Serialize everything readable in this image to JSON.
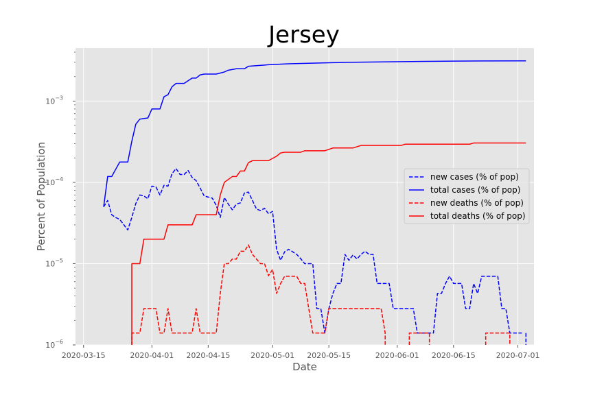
{
  "chart_data": {
    "type": "line",
    "title": "Jersey",
    "xlabel": "Date",
    "ylabel": "Percent of Population",
    "yscale": "log",
    "ylim": [
      1e-06,
      0.0045
    ],
    "xlim": [
      "2020-03-13",
      "2020-07-05"
    ],
    "grid": true,
    "legend_position": "center-right",
    "x_ticks": [
      "2020-03-15",
      "2020-04-01",
      "2020-04-15",
      "2020-05-01",
      "2020-05-15",
      "2020-06-01",
      "2020-06-15",
      "2020-07-01"
    ],
    "y_ticks": [
      {
        "value": 1e-06,
        "base": "10",
        "exp": "−6"
      },
      {
        "value": 1e-05,
        "base": "10",
        "exp": "−5"
      },
      {
        "value": 0.0001,
        "base": "10",
        "exp": "−4"
      },
      {
        "value": 0.001,
        "base": "10",
        "exp": "−3"
      }
    ],
    "series": [
      {
        "name": "new cases (% of pop)",
        "color": "#0000ff",
        "style": "dashed",
        "points": [
          [
            "2020-03-20",
            5e-05
          ],
          [
            "2020-03-21",
            6e-05
          ],
          [
            "2020-03-22",
            4e-05
          ],
          [
            "2020-03-23",
            3.7e-05
          ],
          [
            "2020-03-24",
            3.5e-05
          ],
          [
            "2020-03-26",
            2.6e-05
          ],
          [
            "2020-03-27",
            3.7e-05
          ],
          [
            "2020-03-28",
            5.5e-05
          ],
          [
            "2020-03-29",
            7e-05
          ],
          [
            "2020-03-30",
            6.8e-05
          ],
          [
            "2020-03-31",
            6.3e-05
          ],
          [
            "2020-04-01",
            9e-05
          ],
          [
            "2020-04-02",
            8.8e-05
          ],
          [
            "2020-04-03",
            7e-05
          ],
          [
            "2020-04-04",
            9.2e-05
          ],
          [
            "2020-04-05",
            9e-05
          ],
          [
            "2020-04-06",
            0.000128
          ],
          [
            "2020-04-07",
            0.000148
          ],
          [
            "2020-04-08",
            0.000125
          ],
          [
            "2020-04-09",
            0.000125
          ],
          [
            "2020-04-10",
            0.00014
          ],
          [
            "2020-04-11",
            0.000115
          ],
          [
            "2020-04-12",
            0.000105
          ],
          [
            "2020-04-13",
            8.5e-05
          ],
          [
            "2020-04-14",
            6.8e-05
          ],
          [
            "2020-04-15",
            6.6e-05
          ],
          [
            "2020-04-16",
            6.4e-05
          ],
          [
            "2020-04-17",
            5.2e-05
          ],
          [
            "2020-04-18",
            3.7e-05
          ],
          [
            "2020-04-19",
            6.5e-05
          ],
          [
            "2020-04-20",
            5.4e-05
          ],
          [
            "2020-04-21",
            4.6e-05
          ],
          [
            "2020-04-22",
            5.4e-05
          ],
          [
            "2020-04-23",
            5.6e-05
          ],
          [
            "2020-04-24",
            7.4e-05
          ],
          [
            "2020-04-25",
            7.6e-05
          ],
          [
            "2020-04-26",
            6e-05
          ],
          [
            "2020-04-27",
            4.7e-05
          ],
          [
            "2020-04-28",
            4.5e-05
          ],
          [
            "2020-04-29",
            4.8e-05
          ],
          [
            "2020-04-30",
            4.1e-05
          ],
          [
            "2020-05-01",
            4.4e-05
          ],
          [
            "2020-05-02",
            1.5e-05
          ],
          [
            "2020-05-03",
            1.1e-05
          ],
          [
            "2020-05-04",
            1.4e-05
          ],
          [
            "2020-05-05",
            1.5e-05
          ],
          [
            "2020-05-06",
            1.4e-05
          ],
          [
            "2020-05-07",
            1.3e-05
          ],
          [
            "2020-05-08",
            1.15e-05
          ],
          [
            "2020-05-09",
            1e-05
          ],
          [
            "2020-05-10",
            1e-05
          ],
          [
            "2020-05-11",
            1e-05
          ],
          [
            "2020-05-12",
            2.8e-06
          ],
          [
            "2020-05-13",
            2.8e-06
          ],
          [
            "2020-05-14",
            1.4e-06
          ],
          [
            "2020-05-15",
            2.8e-06
          ],
          [
            "2020-05-16",
            4.3e-06
          ],
          [
            "2020-05-17",
            5.7e-06
          ],
          [
            "2020-05-18",
            5.7e-06
          ],
          [
            "2020-05-19",
            1.3e-05
          ],
          [
            "2020-05-20",
            1.1e-05
          ],
          [
            "2020-05-21",
            1.28e-05
          ],
          [
            "2020-05-22",
            1.14e-05
          ],
          [
            "2020-05-23",
            1.3e-05
          ],
          [
            "2020-05-24",
            1.42e-05
          ],
          [
            "2020-05-25",
            1.3e-05
          ],
          [
            "2020-05-26",
            1.3e-05
          ],
          [
            "2020-05-27",
            5.7e-06
          ],
          [
            "2020-05-28",
            5.7e-06
          ],
          [
            "2020-05-29",
            5.7e-06
          ],
          [
            "2020-05-30",
            5.7e-06
          ],
          [
            "2020-05-31",
            2.8e-06
          ],
          [
            "2020-06-01",
            2.8e-06
          ],
          [
            "2020-06-04",
            2.8e-06
          ],
          [
            "2020-06-05",
            2.8e-06
          ],
          [
            "2020-06-06",
            1.4e-06
          ],
          [
            "2020-06-10",
            1.4e-06
          ],
          [
            "2020-06-11",
            4.3e-06
          ],
          [
            "2020-06-12",
            4.3e-06
          ],
          [
            "2020-06-13",
            5.7e-06
          ],
          [
            "2020-06-14",
            7e-06
          ],
          [
            "2020-06-15",
            5.7e-06
          ],
          [
            "2020-06-17",
            5.7e-06
          ],
          [
            "2020-06-18",
            2.8e-06
          ],
          [
            "2020-06-19",
            2.8e-06
          ],
          [
            "2020-06-20",
            5.7e-06
          ],
          [
            "2020-06-21",
            4.3e-06
          ],
          [
            "2020-06-22",
            7e-06
          ],
          [
            "2020-06-23",
            7e-06
          ],
          [
            "2020-06-26",
            7e-06
          ],
          [
            "2020-06-27",
            2.8e-06
          ],
          [
            "2020-06-28",
            2.8e-06
          ],
          [
            "2020-06-29",
            1.4e-06
          ],
          [
            "2020-07-02",
            1.4e-06
          ],
          null,
          [
            "2020-07-03",
            1.4e-06
          ],
          [
            "2020-07-03",
            9e-07
          ]
        ]
      },
      {
        "name": "total cases (% of pop)",
        "color": "#0000ff",
        "style": "solid",
        "points": [
          [
            "2020-03-20",
            5e-05
          ],
          [
            "2020-03-21",
            0.000118
          ],
          [
            "2020-03-22",
            0.000118
          ],
          [
            "2020-03-23",
            0.000145
          ],
          [
            "2020-03-24",
            0.000178
          ],
          [
            "2020-03-26",
            0.000178
          ],
          [
            "2020-03-27",
            0.00032
          ],
          [
            "2020-03-28",
            0.00052
          ],
          [
            "2020-03-29",
            0.0006
          ],
          [
            "2020-03-31",
            0.00062
          ],
          [
            "2020-04-01",
            0.0008
          ],
          [
            "2020-04-03",
            0.0008
          ],
          [
            "2020-04-04",
            0.00113
          ],
          [
            "2020-04-05",
            0.0012
          ],
          [
            "2020-04-06",
            0.0015
          ],
          [
            "2020-04-07",
            0.00165
          ],
          [
            "2020-04-09",
            0.00165
          ],
          [
            "2020-04-11",
            0.00192
          ],
          [
            "2020-04-12",
            0.00192
          ],
          [
            "2020-04-13",
            0.0021
          ],
          [
            "2020-04-14",
            0.00215
          ],
          [
            "2020-04-17",
            0.00215
          ],
          [
            "2020-04-19",
            0.00228
          ],
          [
            "2020-04-20",
            0.0024
          ],
          [
            "2020-04-22",
            0.0025
          ],
          [
            "2020-04-24",
            0.0025
          ],
          [
            "2020-04-25",
            0.00268
          ],
          [
            "2020-04-30",
            0.0028
          ],
          [
            "2020-05-05",
            0.00288
          ],
          [
            "2020-05-10",
            0.00292
          ],
          [
            "2020-05-15",
            0.00296
          ],
          [
            "2020-05-20",
            0.003
          ],
          [
            "2020-05-25",
            0.00302
          ],
          [
            "2020-06-01",
            0.00305
          ],
          [
            "2020-06-08",
            0.00308
          ],
          [
            "2020-06-15",
            0.0031
          ],
          [
            "2020-06-22",
            0.00312
          ],
          [
            "2020-07-03",
            0.00313
          ]
        ]
      },
      {
        "name": "new deaths (% of pop)",
        "color": "#ff0000",
        "style": "dashed",
        "points": [
          [
            "2020-03-27",
            8.5e-07
          ],
          [
            "2020-03-27",
            1.4e-06
          ],
          [
            "2020-03-29",
            1.4e-06
          ],
          [
            "2020-03-30",
            2.8e-06
          ],
          [
            "2020-04-02",
            2.8e-06
          ],
          [
            "2020-04-03",
            1.4e-06
          ],
          [
            "2020-04-04",
            1.4e-06
          ],
          [
            "2020-04-05",
            2.8e-06
          ],
          [
            "2020-04-06",
            1.4e-06
          ],
          [
            "2020-04-11",
            1.4e-06
          ],
          [
            "2020-04-12",
            2.8e-06
          ],
          [
            "2020-04-13",
            1.4e-06
          ],
          [
            "2020-04-17",
            1.4e-06
          ],
          [
            "2020-04-18",
            4.3e-06
          ],
          [
            "2020-04-19",
            1e-05
          ],
          [
            "2020-04-20",
            1e-05
          ],
          [
            "2020-04-21",
            1.14e-05
          ],
          [
            "2020-04-22",
            1.14e-05
          ],
          [
            "2020-04-23",
            1.42e-05
          ],
          [
            "2020-04-24",
            1.42e-05
          ],
          [
            "2020-04-25",
            1.7e-05
          ],
          [
            "2020-04-26",
            1.3e-05
          ],
          [
            "2020-04-27",
            1.14e-05
          ],
          [
            "2020-04-28",
            1e-05
          ],
          [
            "2020-04-29",
            1e-05
          ],
          [
            "2020-04-30",
            7.1e-06
          ],
          [
            "2020-05-01",
            8.5e-06
          ],
          [
            "2020-05-02",
            4.3e-06
          ],
          [
            "2020-05-03",
            5.7e-06
          ],
          [
            "2020-05-04",
            7e-06
          ],
          [
            "2020-05-07",
            7e-06
          ],
          [
            "2020-05-08",
            5.7e-06
          ],
          [
            "2020-05-09",
            5.7e-06
          ],
          [
            "2020-05-10",
            2.8e-06
          ],
          [
            "2020-05-11",
            1.4e-06
          ],
          [
            "2020-05-14",
            1.4e-06
          ],
          [
            "2020-05-15",
            2.8e-06
          ],
          [
            "2020-05-28",
            2.8e-06
          ],
          [
            "2020-05-29",
            1.4e-06
          ],
          [
            "2020-05-29",
            8.5e-07
          ],
          null,
          [
            "2020-06-04",
            8.5e-07
          ],
          [
            "2020-06-04",
            1.4e-06
          ],
          [
            "2020-06-09",
            1.4e-06
          ],
          [
            "2020-06-09",
            8.5e-07
          ],
          null,
          [
            "2020-06-23",
            8.5e-07
          ],
          [
            "2020-06-23",
            1.4e-06
          ],
          [
            "2020-06-29",
            1.4e-06
          ],
          [
            "2020-06-29",
            8.5e-07
          ]
        ]
      },
      {
        "name": "total deaths (% of pop)",
        "color": "#ff0000",
        "style": "solid",
        "points": [
          [
            "2020-03-27",
            8.5e-07
          ],
          [
            "2020-03-27",
            1e-05
          ],
          [
            "2020-03-29",
            1e-05
          ],
          [
            "2020-03-30",
            2e-05
          ],
          [
            "2020-04-04",
            2e-05
          ],
          [
            "2020-04-05",
            3e-05
          ],
          [
            "2020-04-11",
            3e-05
          ],
          [
            "2020-04-12",
            4e-05
          ],
          [
            "2020-04-17",
            4e-05
          ],
          [
            "2020-04-18",
            7e-05
          ],
          [
            "2020-04-19",
            0.0001
          ],
          [
            "2020-04-21",
            0.000118
          ],
          [
            "2020-04-22",
            0.000118
          ],
          [
            "2020-04-23",
            0.000138
          ],
          [
            "2020-04-24",
            0.000138
          ],
          [
            "2020-04-25",
            0.000175
          ],
          [
            "2020-04-26",
            0.000185
          ],
          [
            "2020-04-30",
            0.000185
          ],
          [
            "2020-05-02",
            0.00021
          ],
          [
            "2020-05-03",
            0.00023
          ],
          [
            "2020-05-04",
            0.000235
          ],
          [
            "2020-05-08",
            0.000235
          ],
          [
            "2020-05-09",
            0.000245
          ],
          [
            "2020-05-14",
            0.000245
          ],
          [
            "2020-05-16",
            0.000265
          ],
          [
            "2020-05-21",
            0.000265
          ],
          [
            "2020-05-23",
            0.000285
          ],
          [
            "2020-06-02",
            0.000285
          ],
          [
            "2020-06-03",
            0.000295
          ],
          [
            "2020-06-19",
            0.000295
          ],
          [
            "2020-06-20",
            0.000305
          ],
          [
            "2020-07-03",
            0.000305
          ]
        ]
      }
    ]
  }
}
